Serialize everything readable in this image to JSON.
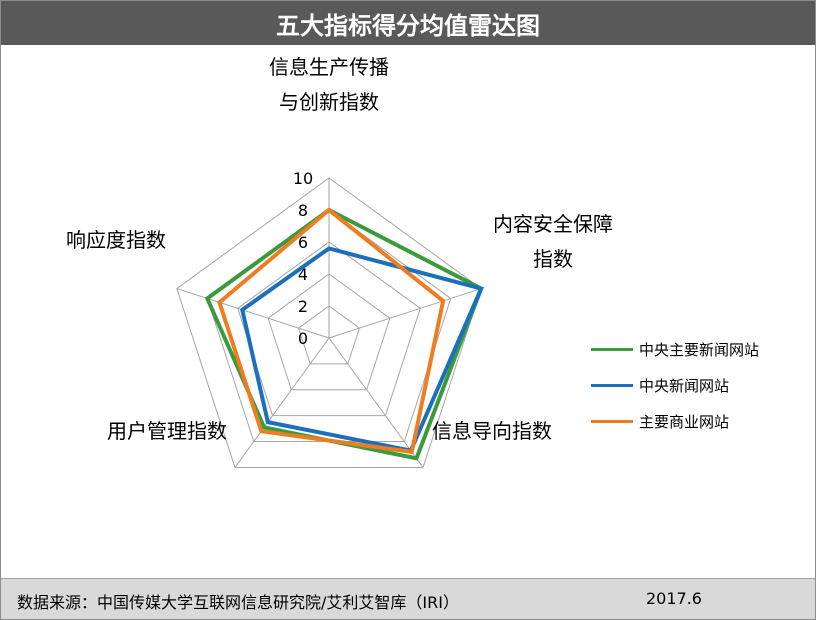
{
  "title": "五大指标得分均值雷达图",
  "footer": {
    "source": "数据来源：中国传媒大学互联网信息研究院/艾利艾智库（IRI）",
    "date": "2017.6"
  },
  "chart_data": {
    "type": "radar",
    "axes": [
      {
        "lines": [
          "信息生产传播",
          "与创新指数"
        ]
      },
      {
        "lines": [
          "内容安全保障",
          "指数"
        ]
      },
      {
        "lines": [
          "信息导向指数"
        ]
      },
      {
        "lines": [
          "用户管理指数"
        ]
      },
      {
        "lines": [
          "响应度指数"
        ]
      }
    ],
    "range": [
      0,
      10
    ],
    "ticks": [
      "0",
      "2",
      "4",
      "6",
      "8",
      "10"
    ],
    "series": [
      {
        "name": "中央主要新闻网站",
        "color": "#3b9a3c",
        "values": [
          8.0,
          10.0,
          9.3,
          6.9,
          8.0
        ]
      },
      {
        "name": "中央新闻网站",
        "color": "#1b6fbd",
        "values": [
          5.6,
          10.0,
          8.7,
          6.5,
          5.7
        ]
      },
      {
        "name": "主要商业网站",
        "color": "#ee7d22",
        "values": [
          8.0,
          7.5,
          8.8,
          7.2,
          7.2
        ]
      }
    ],
    "legend_position": "right"
  }
}
